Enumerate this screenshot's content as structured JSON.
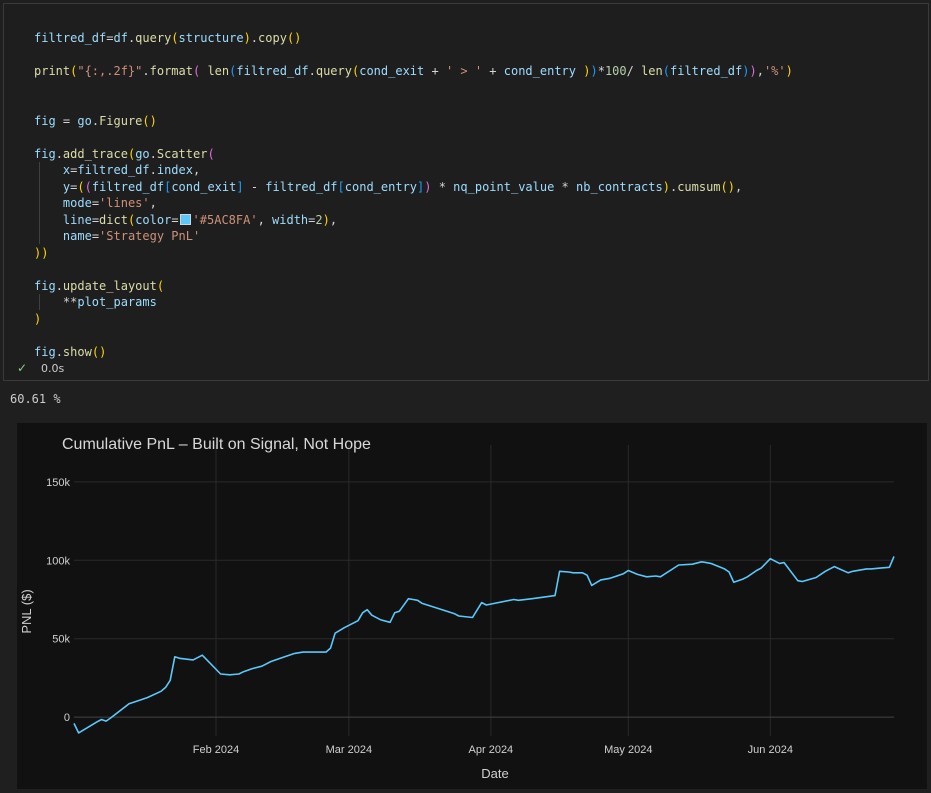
{
  "code_cell": {
    "lines": [
      "filtred_df=df.query(structure).copy()",
      "",
      "print(\"{:,.2f}\".format( len(filtred_df.query(cond_exit + ' > ' + cond_entry ))*100/ len(filtred_df)),'%')",
      "",
      "",
      "fig = go.Figure()",
      "",
      "fig.add_trace(go.Scatter(",
      "    x=filtred_df.index,",
      "    y=((filtred_df[cond_exit] - filtred_df[cond_entry]) * nq_point_value * nb_contracts).cumsum(),",
      "    mode='lines',",
      "    line=dict(color='#5AC8FA', width=2),",
      "    name='Strategy PnL'",
      "))",
      "",
      "fig.update_layout(",
      "    **plot_params",
      ")",
      "",
      "fig.show()"
    ],
    "status_icon": "check-icon",
    "exec_time": "0.0s"
  },
  "output_text": "60.61 %",
  "colors": {
    "line": "#5AC8FA",
    "swatch": "#5AC8FA",
    "background": "#111111",
    "grid": "#2a2a2a"
  },
  "chart_data": {
    "type": "line",
    "title": "Cumulative PnL – Built on Signal, Not Hope",
    "xlabel": "Date",
    "ylabel": "PNL ($)",
    "x_ticks": [
      "Feb 2024",
      "Mar 2024",
      "Apr 2024",
      "May 2024",
      "Jun 2024"
    ],
    "x_tick_dates": [
      "2024-02-01",
      "2024-03-01",
      "2024-04-01",
      "2024-05-01",
      "2024-06-01"
    ],
    "y_ticks": [
      "0",
      "50k",
      "100k",
      "150k"
    ],
    "y_tick_values": [
      0,
      50000,
      100000,
      150000
    ],
    "xlim": [
      "2024-01-01",
      "2024-06-28"
    ],
    "ylim": [
      -12000,
      162000
    ],
    "grid": true,
    "series": [
      {
        "x": [
          "2024-01-01",
          "2024-01-02",
          "2024-01-06",
          "2024-01-07",
          "2024-01-08",
          "2024-01-09",
          "2024-01-13",
          "2024-01-15",
          "2024-01-17",
          "2024-01-20",
          "2024-01-21",
          "2024-01-22",
          "2024-01-23",
          "2024-01-24",
          "2024-01-27",
          "2024-01-29",
          "2024-02-02",
          "2024-02-04",
          "2024-02-06",
          "2024-02-07",
          "2024-02-09",
          "2024-02-11",
          "2024-02-13",
          "2024-02-16",
          "2024-02-18",
          "2024-02-19",
          "2024-02-20",
          "2024-02-22",
          "2024-02-25",
          "2024-02-26",
          "2024-02-27",
          "2024-02-29",
          "2024-03-03",
          "2024-03-04",
          "2024-03-05",
          "2024-03-06",
          "2024-03-08",
          "2024-03-10",
          "2024-03-11",
          "2024-03-12",
          "2024-03-14",
          "2024-03-15",
          "2024-03-16",
          "2024-03-17",
          "2024-03-23",
          "2024-03-24",
          "2024-03-25",
          "2024-03-28",
          "2024-03-30",
          "2024-03-31",
          "2024-04-06",
          "2024-04-07",
          "2024-04-10",
          "2024-04-15",
          "2024-04-16",
          "2024-04-18",
          "2024-04-19",
          "2024-04-21",
          "2024-04-22",
          "2024-04-23",
          "2024-04-25",
          "2024-04-27",
          "2024-04-28",
          "2024-04-30",
          "2024-05-01",
          "2024-05-03",
          "2024-05-05",
          "2024-05-07",
          "2024-05-08",
          "2024-05-12",
          "2024-05-15",
          "2024-05-17",
          "2024-05-18",
          "2024-05-19",
          "2024-05-22",
          "2024-05-23",
          "2024-05-24",
          "2024-05-26",
          "2024-05-27",
          "2024-05-29",
          "2024-05-30",
          "2024-06-01",
          "2024-06-03",
          "2024-06-04",
          "2024-06-07",
          "2024-06-08",
          "2024-06-11",
          "2024-06-13",
          "2024-06-15",
          "2024-06-18",
          "2024-06-19",
          "2024-06-22",
          "2024-06-23",
          "2024-06-25",
          "2024-06-27",
          "2024-06-28"
        ],
        "y": [
          -4000,
          -10000,
          -3000,
          -1500,
          -2500,
          -500,
          8500,
          10500,
          12500,
          16500,
          19000,
          23500,
          38500,
          37500,
          36500,
          39500,
          27500,
          27000,
          27500,
          29000,
          31000,
          32500,
          35500,
          38500,
          40500,
          41000,
          41500,
          41500,
          41500,
          44000,
          53500,
          57000,
          61500,
          66500,
          68500,
          65000,
          62000,
          60500,
          66500,
          67500,
          75500,
          75000,
          74500,
          72500,
          67000,
          66000,
          64500,
          63500,
          73000,
          71500,
          75000,
          74500,
          75500,
          77500,
          93000,
          92500,
          92000,
          92000,
          90500,
          84000,
          87500,
          88500,
          89500,
          91500,
          93500,
          91000,
          89500,
          90000,
          89500,
          97000,
          97500,
          99000,
          98500,
          98000,
          94500,
          92500,
          86000,
          88000,
          89500,
          93500,
          95000,
          101000,
          98000,
          98500,
          87000,
          86500,
          89000,
          93000,
          96000,
          92000,
          93000,
          94500,
          94500,
          95000,
          95500,
          102500
        ]
      }
    ]
  }
}
